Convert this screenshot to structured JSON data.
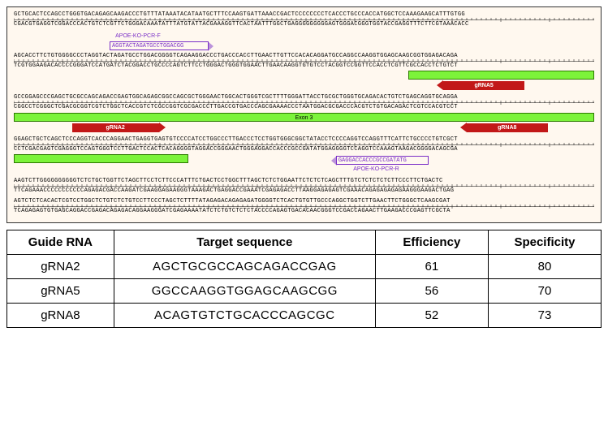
{
  "diagram": {
    "background": "#fff8ef",
    "rows": [
      {
        "fwd": "GCTGCACTCCAGCCTGGGTGACAGAGCAAGACCCTGTTTATAAATACATAATGCTTTCCAAGTGATTAAACCGACTCCCCCCCCTCACCCTGCCCACCATGGCTCCAAAGAAGCATTTGTGG",
        "rev": "CGACGTGAGGTCGGACCCACTGTCTCGTTCTGGGACAAATATTTATGTATTACGAAAGGTTCACTAATTTGGCTGAGGGGGGGGGAGTGGGACGGGTGGTACCGAGGTTTCTTCGTAAACACC"
      },
      {
        "fwd": "AGCACCTTCTGTGGGGCCCTAGGTACTAGATGCCTGGACGGGGTCAGAAGGACCCTGACCCACCTTGAACTTGTTCCACACAGGATGCCAGGCCAAGGTGGAGCAAGCGGTGGAGACAGA",
        "rev": "TCGTGGAAGACACCCCGGGATCCATGATCTACGGACCTGCCCCAGTCTTCCTGGGACTGGGTGGAACTTGAACAAGGTGTGTCCTACGGTCCGGTTCCACCTCGTTCGCCACCTCTGTCT"
      },
      {
        "fwd": "GCCGGAGCCCGAGCTGCGCCAGCAGACCGAGTGGCAGAGCGGCCAGCGCTGGGAACTGGCACTGGGTCGCTTTTGGGATTACCTGCGCTGGGTGCAGACACTGTCTGAGCAGGTGCAGGA",
        "rev": "CGGCCTCGGGCTCGACGCGGTCGTCTGGCTCACCGTCTCGCCGGTCGCGACCCTTGACCGTGACCCAGCGAAAACCCTAATGGACGCGACCCACGTCTGTGACAGACTCGTCCACGTCCT"
      },
      {
        "fwd": "GGAGCTGCTCAGCTCCCAGGTCACCCAGGAACTGAGGTGAGTGTCCCCATCCTGGCCCTTGACCCTCCTGGTGGGCGGCTATACCTCCCCAGGTCCAGGTTTCATTCTGCCCCTGTCGCT",
        "rev": "CCTCGACGAGTCGAGGGTCCAGTGGGTCCTTGACTCCACTCACAGGGGTAGGACCGGGAACTGGGAGGACCACCCGCCGATATGGAGGGGTCCAGGTCCAAAGTAAGACGGGGACAGCGA"
      },
      {
        "fwd": "AAGTCTTGGGGGGGGGGTCTCTGCTGGTTCTAGCTTCCTCTTCCCATTTCTGACTCCTGGCTTTAGCTCTCTGGAATTCTCTCTCAGCTTTGTCTCTCTCTCTTCCCTTCTGACTC",
        "rev": "TTCAGAAACCCCCCCCCCCAGAGACGACCAAGATCGAAGGAGAAGGGTAAAGACTGAGGACCGAAATCGAGAGACCTTAAGGAGAGAGTCGAAACAGAGAGAGAGAAGGGAAGACTGAG"
      },
      {
        "fwd": "AGTCTCTCACACTCGTCCTGGCTCTGTCTCTGTCCTTCCCTAGCTCTTTTATAGAGACAGAGAGATGGGGTCTCACTGTGTTGCCCAGGCTGGTCTTGAACTTCTGGGCTCAAGCGAT",
        "rev": "TCAGAGAGTGTGAGCAGGACCGAGACAGAGACAGGAAGGGATCGAGAAAATATCTCTGTCTCTCTACCCCAGAGTGACACAACGGGTCCGACCAGAACTTGAAGACCCGAGTTCGCTA"
      }
    ],
    "primers": {
      "fwd": {
        "label": "APOE-KO-PCR-F",
        "seq": "AGGTACTAGATGCCTGGACGG",
        "row": 1,
        "left_pct": 16.5,
        "width_pct": 17
      },
      "rev": {
        "label": "APOE-KO-PCR-R",
        "seq": "GAGGACCACCCGCCGATATG",
        "row": 3,
        "left_pct": 55.5,
        "width_pct": 16
      }
    },
    "exon": {
      "label": "Exon 3",
      "segments": [
        {
          "row": 1,
          "left_pct": 68,
          "width_pct": 32
        },
        {
          "row": 2,
          "left_pct": 0,
          "width_pct": 100
        },
        {
          "row": 3,
          "left_pct": 0,
          "width_pct": 30
        }
      ]
    },
    "grnas": [
      {
        "name": "gRNA5",
        "row": 1,
        "dir": "left",
        "left_pct": 74,
        "width_pct": 14
      },
      {
        "name": "gRNA2",
        "row": 2,
        "dir": "right",
        "left_pct": 10,
        "width_pct": 15
      },
      {
        "name": "gRNA8",
        "row": 2,
        "dir": "left",
        "left_pct": 78,
        "width_pct": 14
      }
    ]
  },
  "table": {
    "columns": [
      "Guide RNA",
      "Target sequence",
      "Efficiency",
      "Specificity"
    ],
    "rows": [
      {
        "name": "gRNA2",
        "seq": "AGCTGCGCCAGCAGACCGAG",
        "eff": 61,
        "spec": 80
      },
      {
        "name": "gRNA5",
        "seq": "GGCCAAGGTGGAGCAAGCGG",
        "eff": 56,
        "spec": 70
      },
      {
        "name": "gRNA8",
        "seq": "ACAGTGTCTGCACCCAGCGC",
        "eff": 52,
        "spec": 73
      }
    ]
  }
}
